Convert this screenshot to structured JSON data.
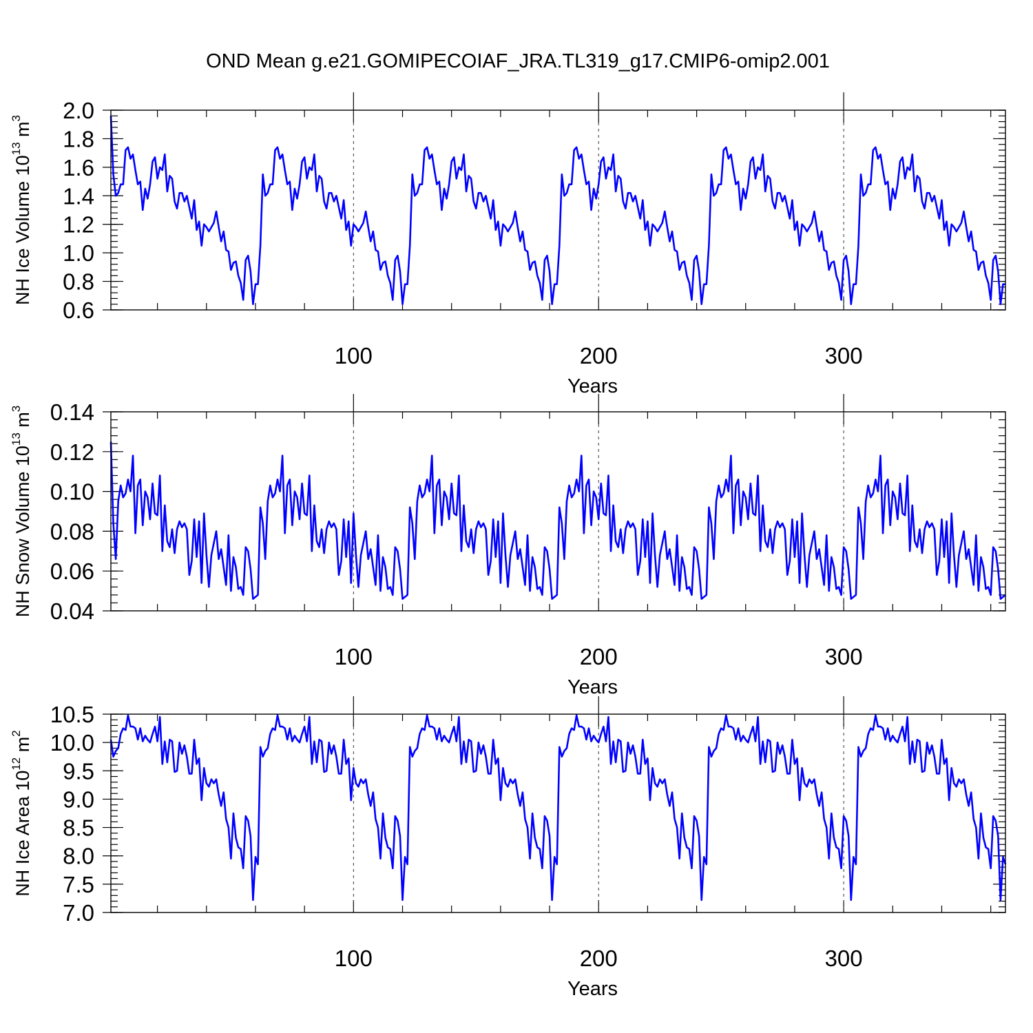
{
  "title": "OND Mean g.e21.GOMIPECOIAF_JRA.TL319_g17.CMIP6-omip2.001",
  "colors": {
    "line": "#0000ff",
    "axis": "#000000"
  },
  "chart_data": [
    {
      "type": "line",
      "title": "OND Mean g.e21.GOMIPECOIAF_JRA.TL319_g17.CMIP6-omip2.001",
      "xlabel": "Years",
      "ylabel": "NH Ice Volume 10",
      "ylabel_exp": "13",
      "ylabel_unit": " m",
      "ylabel_unit_exp": "3",
      "xlim": [
        1,
        366
      ],
      "ylim": [
        0.6,
        2.0
      ],
      "xticks": [
        100,
        200,
        300
      ],
      "xtick_labels": [
        "100",
        "200",
        "300"
      ],
      "yticks": [
        0.6,
        0.8,
        1.0,
        1.2,
        1.4,
        1.6,
        1.8,
        2.0
      ],
      "ytick_labels": [
        "0.6",
        "0.8",
        "1.0",
        "1.2",
        "1.4",
        "1.6",
        "1.8",
        "2.0"
      ],
      "yminor_step": 0.04,
      "xminor_step": 20,
      "grid": "dashed vertical at x ticks",
      "x_start": 1,
      "cycle_length": 61,
      "cycle_count": 6,
      "first_value": 1.96,
      "series": [
        {
          "name": "NH Ice Volume",
          "repeat_values": [
            1.55,
            1.4,
            1.42,
            1.48,
            1.48,
            1.72,
            1.74,
            1.66,
            1.69,
            1.58,
            1.48,
            1.5,
            1.3,
            1.45,
            1.38,
            1.48,
            1.64,
            1.67,
            1.52,
            1.6,
            1.58,
            1.69,
            1.43,
            1.54,
            1.52,
            1.36,
            1.31,
            1.42,
            1.42,
            1.36,
            1.4,
            1.32,
            1.24,
            1.37,
            1.16,
            1.22,
            1.05,
            1.2,
            1.18,
            1.15,
            1.18,
            1.21,
            1.29,
            1.18,
            1.08,
            1.15,
            1.02,
            1.01,
            0.88,
            0.93,
            0.94,
            0.84,
            0.79,
            0.67,
            0.95,
            0.98,
            0.87,
            0.64,
            0.78,
            0.78,
            1.05
          ]
        }
      ]
    },
    {
      "type": "line",
      "xlabel": "Years",
      "ylabel": "NH Snow Volume 10",
      "ylabel_exp": "13",
      "ylabel_unit": " m",
      "ylabel_unit_exp": "3",
      "xlim": [
        1,
        366
      ],
      "ylim": [
        0.04,
        0.14
      ],
      "xticks": [
        100,
        200,
        300
      ],
      "xtick_labels": [
        "100",
        "200",
        "300"
      ],
      "yticks": [
        0.04,
        0.06,
        0.08,
        0.1,
        0.12,
        0.14
      ],
      "ytick_labels": [
        "0.04",
        "0.06",
        "0.08",
        "0.10",
        "0.12",
        "0.14"
      ],
      "yminor_step": 0.004,
      "xminor_step": 20,
      "grid": "dashed vertical at x ticks",
      "x_start": 1,
      "cycle_length": 61,
      "cycle_count": 6,
      "first_value": 0.125,
      "series": [
        {
          "name": "NH Snow Volume",
          "repeat_values": [
            0.084,
            0.066,
            0.095,
            0.103,
            0.097,
            0.099,
            0.106,
            0.1,
            0.118,
            0.079,
            0.103,
            0.106,
            0.083,
            0.1,
            0.097,
            0.086,
            0.104,
            0.089,
            0.088,
            0.108,
            0.07,
            0.093,
            0.075,
            0.072,
            0.081,
            0.069,
            0.081,
            0.085,
            0.082,
            0.084,
            0.081,
            0.058,
            0.065,
            0.086,
            0.067,
            0.085,
            0.054,
            0.089,
            0.068,
            0.052,
            0.068,
            0.074,
            0.08,
            0.066,
            0.071,
            0.062,
            0.053,
            0.078,
            0.05,
            0.067,
            0.062,
            0.051,
            0.052,
            0.048,
            0.072,
            0.07,
            0.061,
            0.046,
            0.047,
            0.048,
            0.092
          ]
        }
      ]
    },
    {
      "type": "line",
      "xlabel": "Years",
      "ylabel": "NH Ice Area 10",
      "ylabel_exp": "12",
      "ylabel_unit": " m",
      "ylabel_unit_exp": "2",
      "xlim": [
        1,
        366
      ],
      "ylim": [
        7.0,
        10.5
      ],
      "xticks": [
        100,
        200,
        300
      ],
      "xtick_labels": [
        "100",
        "200",
        "300"
      ],
      "yticks": [
        7.0,
        7.5,
        8.0,
        8.5,
        9.0,
        9.5,
        10.0,
        10.5
      ],
      "ytick_labels": [
        "7.0",
        "7.5",
        "8.0",
        "8.5",
        "9.0",
        "9.5",
        "10.0",
        "10.5"
      ],
      "yminor_step": 0.1,
      "xminor_step": 20,
      "grid": "dashed vertical at x ticks",
      "x_start": 1,
      "cycle_length": 61,
      "cycle_count": 6,
      "first_value": 10.05,
      "series": [
        {
          "name": "NH Ice Area",
          "repeat_values": [
            9.75,
            9.85,
            9.9,
            10.15,
            10.25,
            10.22,
            10.48,
            10.28,
            10.28,
            10.25,
            10.05,
            10.25,
            10.02,
            10.12,
            10.05,
            10.0,
            10.15,
            10.28,
            10.02,
            10.45,
            9.62,
            10.02,
            9.65,
            10.05,
            10.02,
            9.48,
            9.5,
            10.0,
            9.8,
            9.95,
            9.75,
            9.45,
            9.45,
            10.05,
            9.62,
            9.72,
            8.98,
            9.55,
            9.28,
            9.22,
            9.35,
            9.28,
            9.35,
            9.08,
            8.88,
            9.12,
            8.65,
            8.5,
            7.95,
            8.75,
            8.32,
            8.15,
            8.12,
            7.78,
            8.7,
            8.62,
            8.35,
            7.22,
            7.98,
            7.85,
            9.92
          ]
        }
      ]
    }
  ]
}
